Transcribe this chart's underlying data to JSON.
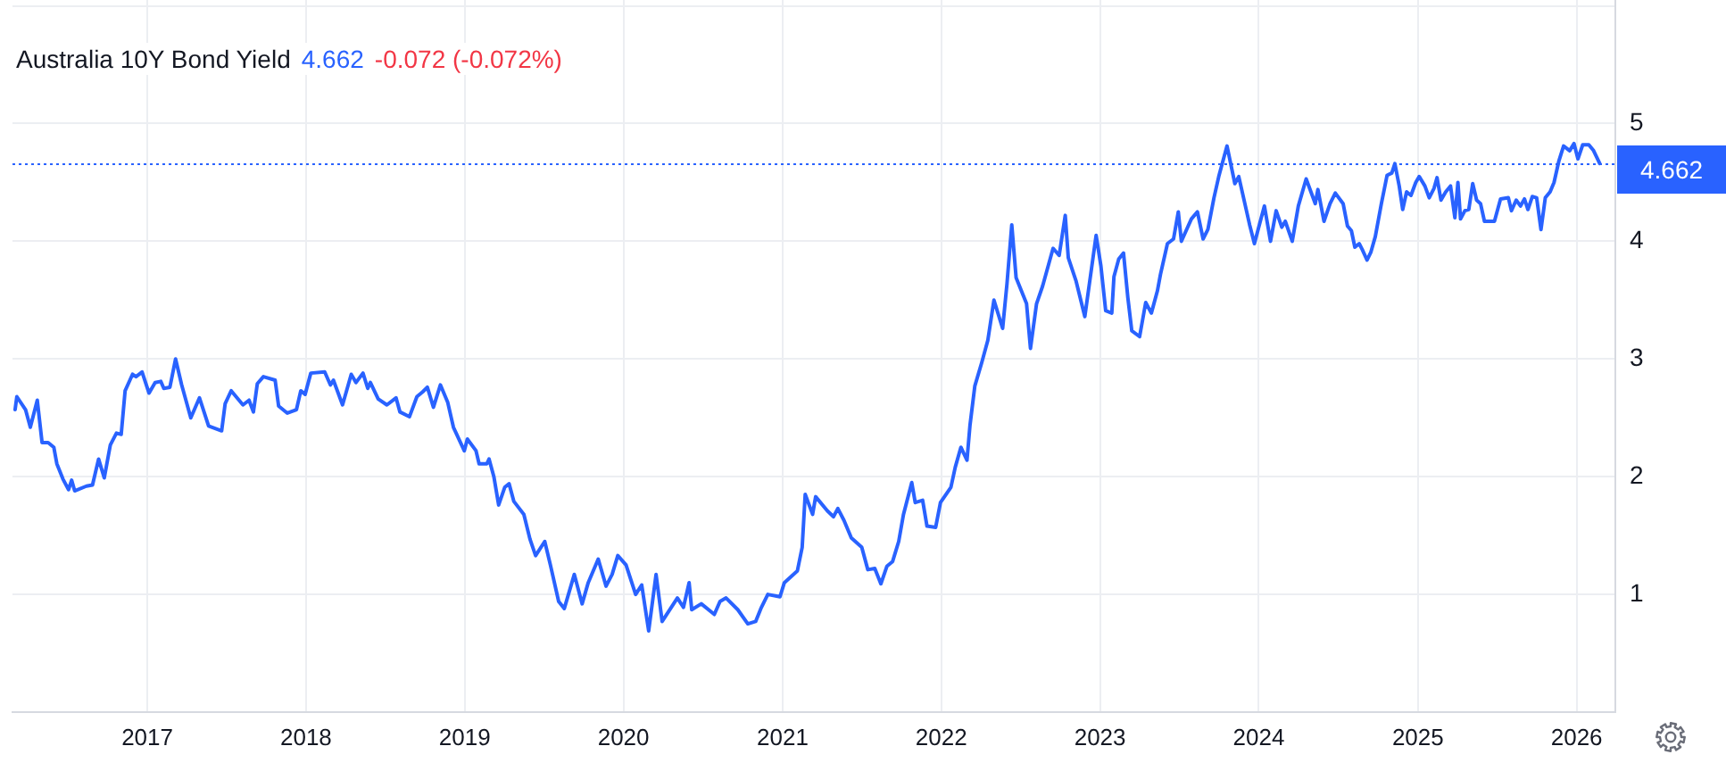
{
  "chart_data": {
    "type": "line",
    "title": "Australia 10Y Bond Yield",
    "annotations": [
      "4.662",
      "-0.072 (-0.072%)"
    ],
    "x": [
      "2016-03-03",
      "2016-03-07",
      "2016-03-27",
      "2016-04-07",
      "2016-04-23",
      "2016-05-04",
      "2016-05-18",
      "2016-05-31",
      "2016-06-07",
      "2016-06-21",
      "2016-07-04",
      "2016-07-11",
      "2016-07-18",
      "2016-08-14",
      "2016-08-28",
      "2016-09-11",
      "2016-09-24",
      "2016-10-08",
      "2016-10-22",
      "2016-11-02",
      "2016-11-11",
      "2016-11-28",
      "2016-12-06",
      "2016-12-20",
      "2017-01-05",
      "2017-01-19",
      "2017-02-01",
      "2017-02-08",
      "2017-02-22",
      "2017-03-07",
      "2017-03-21",
      "2017-04-11",
      "2017-05-01",
      "2017-05-22",
      "2017-06-21",
      "2017-06-29",
      "2017-07-13",
      "2017-08-09",
      "2017-08-23",
      "2017-09-02",
      "2017-09-11",
      "2017-09-25",
      "2017-10-22",
      "2017-10-30",
      "2017-11-19",
      "2017-12-10",
      "2017-12-20",
      "2017-12-30",
      "2018-01-12",
      "2018-02-13",
      "2018-02-26",
      "2018-03-05",
      "2018-03-26",
      "2018-04-15",
      "2018-04-26",
      "2018-05-12",
      "2018-05-23",
      "2018-05-29",
      "2018-06-16",
      "2018-07-06",
      "2018-07-27",
      "2018-08-05",
      "2018-08-27",
      "2018-09-13",
      "2018-09-26",
      "2018-10-07",
      "2018-10-21",
      "2018-11-06",
      "2018-11-23",
      "2018-12-06",
      "2018-12-31",
      "2019-01-07",
      "2019-01-27",
      "2019-02-03",
      "2019-02-21",
      "2019-02-26",
      "2019-03-09",
      "2019-03-20",
      "2019-04-03",
      "2019-04-13",
      "2019-04-24",
      "2019-05-17",
      "2019-05-31",
      "2019-06-13",
      "2019-07-04",
      "2019-07-17",
      "2019-08-05",
      "2019-08-18",
      "2019-09-10",
      "2019-09-28",
      "2019-10-12",
      "2019-11-04",
      "2019-11-22",
      "2019-12-06",
      "2019-12-19",
      "2020-01-07",
      "2020-01-29",
      "2020-02-12",
      "2020-02-28",
      "2020-03-16",
      "2020-03-30",
      "2020-05-04",
      "2020-05-18",
      "2020-05-31",
      "2020-06-06",
      "2020-06-28",
      "2020-07-28",
      "2020-08-10",
      "2020-08-24",
      "2020-09-20",
      "2020-10-13",
      "2020-10-31",
      "2020-11-12",
      "2020-11-28",
      "2020-12-26",
      "2021-01-05",
      "2021-02-04",
      "2021-02-15",
      "2021-02-22",
      "2021-03-11",
      "2021-03-18",
      "2021-04-14",
      "2021-04-28",
      "2021-05-08",
      "2021-05-22",
      "2021-06-08",
      "2021-07-02",
      "2021-07-16",
      "2021-08-01",
      "2021-08-15",
      "2021-08-29",
      "2021-09-11",
      "2021-09-25",
      "2021-10-06",
      "2021-10-25",
      "2021-11-02",
      "2021-11-19",
      "2021-11-29",
      "2021-12-19",
      "2021-12-30",
      "2022-01-23",
      "2022-02-02",
      "2022-02-15",
      "2022-03-01",
      "2022-03-08",
      "2022-03-19",
      "2022-04-04",
      "2022-04-18",
      "2022-05-02",
      "2022-05-22",
      "2022-06-01",
      "2022-06-12",
      "2022-06-22",
      "2022-07-16",
      "2022-07-25",
      "2022-08-08",
      "2022-08-22",
      "2022-09-15",
      "2022-09-29",
      "2022-10-13",
      "2022-10-20",
      "2022-11-07",
      "2022-11-27",
      "2022-12-23",
      "2023-01-03",
      "2023-01-14",
      "2023-01-28",
      "2023-02-02",
      "2023-02-13",
      "2023-02-24",
      "2023-03-06",
      "2023-03-15",
      "2023-04-02",
      "2023-04-16",
      "2023-04-29",
      "2023-05-13",
      "2023-05-20",
      "2023-06-05",
      "2023-06-19",
      "2023-06-30",
      "2023-07-07",
      "2023-07-30",
      "2023-08-13",
      "2023-08-26",
      "2023-09-06",
      "2023-09-20",
      "2023-10-01",
      "2023-10-20",
      "2023-11-07",
      "2023-11-16",
      "2023-12-11",
      "2023-12-22",
      "2024-01-01",
      "2024-01-14",
      "2024-01-28",
      "2024-02-10",
      "2024-02-23",
      "2024-03-02",
      "2024-03-18",
      "2024-04-01",
      "2024-04-19",
      "2024-05-10",
      "2024-05-16",
      "2024-05-30",
      "2024-06-13",
      "2024-06-25",
      "2024-07-13",
      "2024-07-23",
      "2024-08-01",
      "2024-08-09",
      "2024-08-19",
      "2024-08-26",
      "2024-09-06",
      "2024-09-15",
      "2024-09-25",
      "2024-10-09",
      "2024-10-22",
      "2024-11-02",
      "2024-11-09",
      "2024-11-19",
      "2024-11-27",
      "2024-12-06",
      "2024-12-16",
      "2024-12-27",
      "2025-01-04",
      "2025-01-17",
      "2025-01-27",
      "2025-02-07",
      "2025-02-14",
      "2025-02-23",
      "2025-03-06",
      "2025-03-17",
      "2025-03-27",
      "2025-04-03",
      "2025-04-09",
      "2025-04-19",
      "2025-04-28",
      "2025-05-07",
      "2025-05-16",
      "2025-05-25",
      "2025-06-03",
      "2025-06-17",
      "2025-06-26",
      "2025-07-10",
      "2025-07-28",
      "2025-08-04",
      "2025-08-15",
      "2025-08-25",
      "2025-09-03",
      "2025-09-11",
      "2025-09-21",
      "2025-10-01",
      "2025-10-11",
      "2025-10-21",
      "2025-11-01",
      "2025-11-10",
      "2025-11-21",
      "2025-12-02",
      "2025-12-16",
      "2025-12-26",
      "2026-01-04",
      "2026-01-15",
      "2026-01-29",
      "2026-02-09",
      "2026-02-23"
    ],
    "values": [
      2.57,
      2.68,
      2.57,
      2.42,
      2.65,
      2.29,
      2.29,
      2.25,
      2.11,
      1.98,
      1.89,
      1.97,
      1.88,
      1.92,
      1.93,
      2.15,
      1.99,
      2.27,
      2.37,
      2.36,
      2.73,
      2.87,
      2.85,
      2.89,
      2.71,
      2.8,
      2.81,
      2.75,
      2.76,
      3.0,
      2.78,
      2.5,
      2.67,
      2.43,
      2.39,
      2.62,
      2.73,
      2.61,
      2.65,
      2.55,
      2.79,
      2.85,
      2.82,
      2.6,
      2.54,
      2.57,
      2.73,
      2.7,
      2.88,
      2.89,
      2.78,
      2.82,
      2.61,
      2.87,
      2.8,
      2.88,
      2.75,
      2.8,
      2.66,
      2.61,
      2.67,
      2.55,
      2.51,
      2.68,
      2.72,
      2.76,
      2.59,
      2.78,
      2.63,
      2.42,
      2.22,
      2.32,
      2.22,
      2.11,
      2.11,
      2.15,
      2.0,
      1.76,
      1.91,
      1.94,
      1.79,
      1.68,
      1.47,
      1.33,
      1.45,
      1.25,
      0.94,
      0.88,
      1.17,
      0.92,
      1.1,
      1.3,
      1.07,
      1.17,
      1.33,
      1.25,
      1.0,
      1.08,
      0.69,
      1.17,
      0.77,
      0.97,
      0.89,
      1.1,
      0.87,
      0.92,
      0.83,
      0.94,
      0.97,
      0.87,
      0.75,
      0.77,
      0.88,
      1.0,
      0.98,
      1.1,
      1.2,
      1.4,
      1.85,
      1.68,
      1.83,
      1.71,
      1.66,
      1.73,
      1.63,
      1.48,
      1.4,
      1.21,
      1.22,
      1.09,
      1.24,
      1.28,
      1.45,
      1.68,
      1.95,
      1.78,
      1.8,
      1.58,
      1.57,
      1.78,
      1.91,
      2.08,
      2.25,
      2.14,
      2.44,
      2.77,
      2.97,
      3.16,
      3.5,
      3.26,
      3.64,
      4.14,
      3.69,
      3.47,
      3.09,
      3.47,
      3.62,
      3.94,
      3.88,
      4.22,
      3.86,
      3.66,
      3.36,
      4.05,
      3.79,
      3.41,
      3.39,
      3.7,
      3.85,
      3.9,
      3.52,
      3.24,
      3.19,
      3.48,
      3.39,
      3.58,
      3.72,
      3.98,
      4.02,
      4.25,
      4.0,
      4.19,
      4.25,
      4.02,
      4.1,
      4.37,
      4.55,
      4.81,
      4.49,
      4.55,
      4.14,
      3.98,
      4.12,
      4.3,
      4.0,
      4.26,
      4.12,
      4.17,
      4.0,
      4.3,
      4.53,
      4.32,
      4.44,
      4.17,
      4.32,
      4.41,
      4.32,
      4.13,
      4.09,
      3.95,
      3.98,
      3.93,
      3.84,
      3.91,
      4.04,
      4.32,
      4.56,
      4.58,
      4.66,
      4.47,
      4.27,
      4.42,
      4.39,
      4.5,
      4.55,
      4.47,
      4.37,
      4.45,
      4.54,
      4.35,
      4.42,
      4.47,
      4.2,
      4.5,
      4.19,
      4.26,
      4.27,
      4.49,
      4.35,
      4.32,
      4.17,
      4.17,
      4.17,
      4.36,
      4.37,
      4.26,
      4.35,
      4.3,
      4.36,
      4.27,
      4.38,
      4.37,
      4.1,
      4.37,
      4.42,
      4.5,
      4.68,
      4.81,
      4.77,
      4.83,
      4.7,
      4.82,
      4.82,
      4.77,
      4.662
    ],
    "color": "#2962ff",
    "marker": "none",
    "line_style": "solid",
    "xlim": [
      "2016-02-26",
      "2026-03-31"
    ],
    "xticks": [
      "2017",
      "2018",
      "2019",
      "2020",
      "2021",
      "2022",
      "2023",
      "2024",
      "2025",
      "2026"
    ],
    "ylim": [
      0,
      6.05
    ],
    "yticks": [
      1,
      2,
      3,
      4,
      5,
      {
        "value": 6,
        "label": null
      }
    ],
    "grid": true,
    "ref_lines": [
      {
        "axis": "y",
        "value": 4.662,
        "label": "4.662",
        "color": "#2962ff",
        "line_style": "dotted"
      }
    ]
  }
}
